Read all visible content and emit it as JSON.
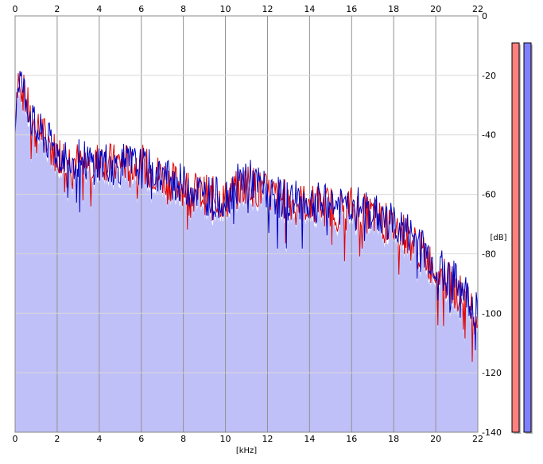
{
  "chart_data": {
    "type": "line",
    "title": "",
    "xlabel": "[kHz]",
    "ylabel": "[dB]",
    "xlim": [
      0,
      22
    ],
    "ylim": [
      -140,
      0
    ],
    "x_ticks": [
      "0",
      "2",
      "4",
      "6",
      "8",
      "10",
      "12",
      "14",
      "16",
      "18",
      "20",
      "22"
    ],
    "y_ticks": [
      "0",
      "-20",
      "-40",
      "-60",
      "-80",
      "-100",
      "-120",
      "-140"
    ],
    "grid": true,
    "fill_color": "#c0c0f8",
    "series": [
      {
        "color": "#e00000",
        "x": [
          0,
          0.1,
          0.2,
          0.3,
          0.5,
          0.8,
          1.0,
          1.3,
          1.5,
          1.8,
          2.0,
          2.3,
          2.6,
          3.0,
          3.4,
          3.8,
          4.0,
          4.4,
          4.8,
          5.0,
          5.5,
          6.0,
          6.5,
          7.0,
          7.5,
          8.0,
          8.5,
          9.0,
          9.5,
          10.0,
          10.5,
          11.0,
          11.5,
          12.0,
          12.5,
          13.0,
          13.5,
          14.0,
          14.5,
          15.0,
          15.5,
          16.0,
          16.5,
          17.0,
          17.5,
          18.0,
          18.5,
          19.0,
          19.5,
          20.0,
          20.5,
          21.0,
          21.5,
          22.0
        ],
        "y": [
          -34,
          -22,
          -19,
          -24,
          -28,
          -36,
          -40,
          -38,
          -43,
          -45,
          -46,
          -47,
          -48,
          -49,
          -50,
          -50,
          -48,
          -49,
          -50,
          -49,
          -50,
          -50,
          -52,
          -54,
          -56,
          -57,
          -59,
          -60,
          -61,
          -62,
          -59,
          -56,
          -58,
          -60,
          -61,
          -62,
          -63,
          -63,
          -64,
          -64,
          -65,
          -64,
          -66,
          -67,
          -69,
          -71,
          -73,
          -77,
          -81,
          -85,
          -89,
          -92,
          -96,
          -102
        ]
      },
      {
        "color": "#0000c0",
        "x": [
          0,
          0.1,
          0.2,
          0.3,
          0.5,
          0.8,
          1.0,
          1.3,
          1.5,
          1.8,
          2.0,
          2.3,
          2.6,
          3.0,
          3.4,
          3.8,
          4.0,
          4.4,
          4.8,
          5.0,
          5.5,
          6.0,
          6.5,
          7.0,
          7.5,
          8.0,
          8.5,
          9.0,
          9.5,
          10.0,
          10.5,
          11.0,
          11.5,
          12.0,
          12.5,
          13.0,
          13.5,
          14.0,
          14.5,
          15.0,
          15.5,
          16.0,
          16.5,
          17.0,
          17.5,
          18.0,
          18.5,
          19.0,
          19.5,
          20.0,
          20.5,
          21.0,
          21.5,
          22.0
        ],
        "y": [
          -36,
          -24,
          -20,
          -23,
          -27,
          -35,
          -39,
          -40,
          -42,
          -44,
          -46,
          -47,
          -48,
          -48,
          -49,
          -50,
          -49,
          -49,
          -51,
          -50,
          -50,
          -51,
          -52,
          -54,
          -55,
          -57,
          -58,
          -60,
          -61,
          -61,
          -57,
          -54,
          -57,
          -59,
          -61,
          -62,
          -62,
          -63,
          -63,
          -63,
          -64,
          -63,
          -65,
          -66,
          -68,
          -70,
          -72,
          -75,
          -79,
          -84,
          -87,
          -90,
          -94,
          -100
        ]
      }
    ],
    "level_meters": [
      {
        "color": "#ff8080",
        "level": 0.98
      },
      {
        "color": "#8080ff",
        "level": 0.98
      }
    ]
  }
}
